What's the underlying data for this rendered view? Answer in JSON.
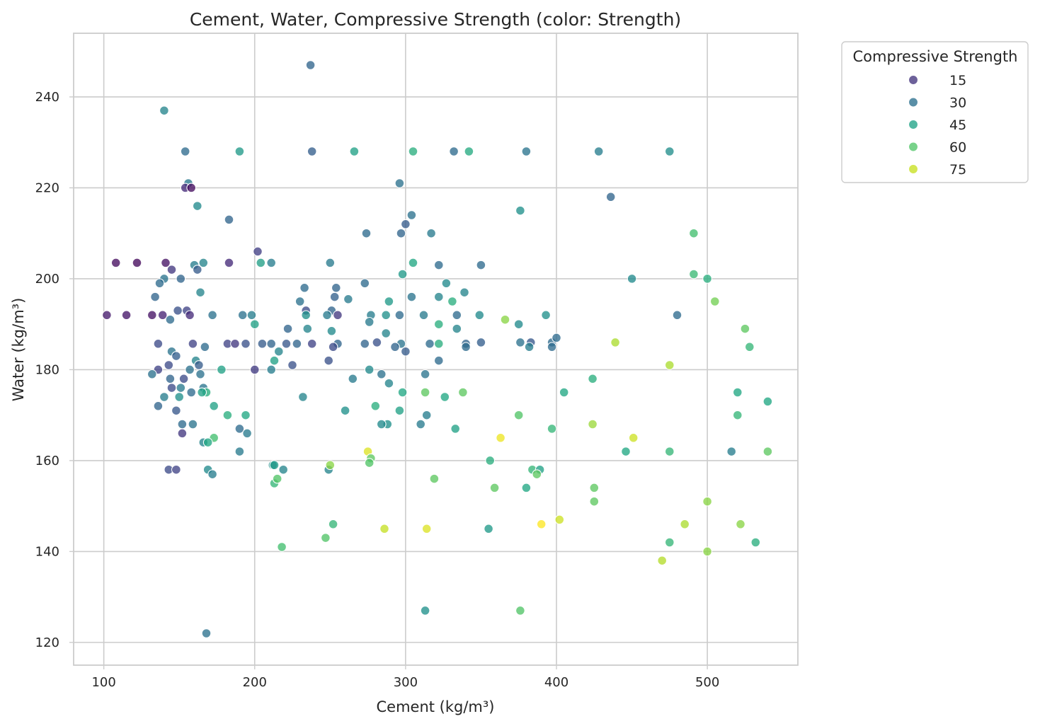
{
  "chart_data": {
    "type": "scatter",
    "title": "Cement, Water, Compressive Strength (color: Strength)",
    "xlabel": "Cement (kg/m³)",
    "ylabel": "Water (kg/m³)",
    "xlim": [
      80,
      560
    ],
    "ylim": [
      115,
      254
    ],
    "xticks": [
      100,
      200,
      300,
      400,
      500
    ],
    "yticks": [
      120,
      140,
      160,
      180,
      200,
      220,
      240
    ],
    "grid": true,
    "legend": {
      "title": "Compressive Strength",
      "placement": "outside-top-right",
      "entries": [
        {
          "label": "15",
          "value": 15,
          "color": "#44357d"
        },
        {
          "label": "30",
          "value": 30,
          "color": "#2c6f8e"
        },
        {
          "label": "45",
          "value": 45,
          "color": "#20a386"
        },
        {
          "label": "60",
          "value": 60,
          "color": "#52c569"
        },
        {
          "label": "75",
          "value": 75,
          "color": "#c8e020"
        }
      ]
    },
    "color_scale": {
      "name": "viridis",
      "domain": [
        2,
        82
      ],
      "stops": [
        "#440154",
        "#482475",
        "#414487",
        "#355f8d",
        "#2a788e",
        "#21918c",
        "#22a884",
        "#44bf70",
        "#7ad151",
        "#bddf26",
        "#fde725"
      ]
    },
    "points": [
      [
        237,
        247,
        28
      ],
      [
        140,
        237,
        38
      ],
      [
        154,
        228,
        30
      ],
      [
        190,
        228,
        45
      ],
      [
        238,
        228,
        26
      ],
      [
        266,
        228,
        48
      ],
      [
        305,
        228,
        52
      ],
      [
        332,
        228,
        30
      ],
      [
        342,
        228,
        51
      ],
      [
        380,
        228,
        33
      ],
      [
        428,
        228,
        36
      ],
      [
        475,
        228,
        41
      ],
      [
        156,
        221,
        34
      ],
      [
        154,
        220,
        12
      ],
      [
        158,
        220,
        5
      ],
      [
        296,
        221,
        32
      ],
      [
        436,
        218,
        28
      ],
      [
        162,
        216,
        40
      ],
      [
        376,
        215,
        42
      ],
      [
        183,
        213,
        28
      ],
      [
        300,
        212,
        25
      ],
      [
        304,
        214,
        32
      ],
      [
        274,
        210,
        30
      ],
      [
        297,
        210,
        28
      ],
      [
        317,
        210,
        35
      ],
      [
        491,
        210,
        58
      ],
      [
        108,
        203.5,
        5
      ],
      [
        122,
        203.5,
        4
      ],
      [
        141,
        203.5,
        6
      ],
      [
        160,
        203,
        36
      ],
      [
        166,
        203.5,
        38
      ],
      [
        183,
        203.5,
        12
      ],
      [
        204,
        203.5,
        47
      ],
      [
        211,
        203.5,
        36
      ],
      [
        250,
        203.5,
        35
      ],
      [
        305,
        203.5,
        50
      ],
      [
        322,
        203,
        30
      ],
      [
        350,
        203,
        30
      ],
      [
        202,
        206,
        17
      ],
      [
        145,
        202,
        15
      ],
      [
        162,
        202,
        25
      ],
      [
        491,
        201,
        56
      ],
      [
        298,
        201,
        45
      ],
      [
        500,
        200,
        52
      ],
      [
        450,
        200,
        40
      ],
      [
        140,
        200,
        33
      ],
      [
        151,
        200,
        28
      ],
      [
        137,
        199,
        30
      ],
      [
        233,
        198,
        30
      ],
      [
        254,
        198,
        28
      ],
      [
        273,
        199,
        30
      ],
      [
        327,
        199,
        40
      ],
      [
        164,
        197,
        38
      ],
      [
        339,
        197,
        38
      ],
      [
        134,
        196,
        28
      ],
      [
        253,
        196,
        27
      ],
      [
        230,
        195,
        32
      ],
      [
        262,
        195.5,
        35
      ],
      [
        289,
        195,
        45
      ],
      [
        331,
        195,
        52
      ],
      [
        304,
        196,
        33
      ],
      [
        322,
        196,
        38
      ],
      [
        505,
        195,
        65
      ],
      [
        234,
        193,
        20
      ],
      [
        251,
        193,
        28
      ],
      [
        155,
        193,
        18
      ],
      [
        312,
        192,
        35
      ],
      [
        149,
        193,
        22
      ],
      [
        102,
        192,
        8
      ],
      [
        115,
        192,
        7
      ],
      [
        132,
        192,
        6
      ],
      [
        139,
        192,
        10
      ],
      [
        157,
        192,
        12
      ],
      [
        172,
        192,
        32
      ],
      [
        192,
        192,
        32
      ],
      [
        198,
        192,
        36
      ],
      [
        234,
        192,
        42
      ],
      [
        248,
        192,
        35
      ],
      [
        255,
        192,
        15
      ],
      [
        277,
        192,
        36
      ],
      [
        287,
        192,
        42
      ],
      [
        296,
        192,
        30
      ],
      [
        349,
        192,
        40
      ],
      [
        393,
        192,
        42
      ],
      [
        480,
        192,
        30
      ],
      [
        334,
        192,
        30
      ],
      [
        144,
        191,
        30
      ],
      [
        200,
        190,
        48
      ],
      [
        276,
        190.5,
        35
      ],
      [
        322,
        190,
        52
      ],
      [
        334,
        189,
        38
      ],
      [
        375,
        190,
        40
      ],
      [
        366,
        191,
        68
      ],
      [
        222,
        189,
        28
      ],
      [
        251,
        188.5,
        40
      ],
      [
        235,
        189,
        38
      ],
      [
        287,
        188,
        38
      ],
      [
        439,
        186,
        72
      ],
      [
        475,
        181,
        72
      ],
      [
        525,
        189,
        62
      ],
      [
        528,
        185,
        55
      ],
      [
        182,
        185.7,
        18
      ],
      [
        187,
        185.7,
        15
      ],
      [
        194,
        185.7,
        22
      ],
      [
        205,
        185.7,
        25
      ],
      [
        211,
        185.7,
        28
      ],
      [
        221,
        185.7,
        24
      ],
      [
        228,
        185.7,
        28
      ],
      [
        238,
        185.7,
        18
      ],
      [
        255,
        185.7,
        28
      ],
      [
        273,
        185.7,
        28
      ],
      [
        281,
        186,
        22
      ],
      [
        297,
        185.7,
        33
      ],
      [
        316,
        185.7,
        30
      ],
      [
        322,
        185.7,
        52
      ],
      [
        340,
        185.7,
        28
      ],
      [
        350,
        186,
        26
      ],
      [
        376,
        186,
        32
      ],
      [
        383,
        186,
        24
      ],
      [
        397,
        186,
        30
      ],
      [
        400,
        187,
        30
      ],
      [
        159,
        185.7,
        18
      ],
      [
        136,
        185.7,
        20
      ],
      [
        167,
        185,
        30
      ],
      [
        216,
        184,
        38
      ],
      [
        145,
        184,
        33
      ],
      [
        300,
        184,
        25
      ],
      [
        252,
        185,
        20
      ],
      [
        340,
        185,
        30
      ],
      [
        382,
        185,
        36
      ],
      [
        397,
        185,
        30
      ],
      [
        293,
        185,
        28
      ],
      [
        161,
        182,
        38
      ],
      [
        143,
        181,
        20
      ],
      [
        163,
        181,
        25
      ],
      [
        213,
        182,
        48
      ],
      [
        225,
        181,
        22
      ],
      [
        136,
        180,
        18
      ],
      [
        157,
        180,
        32
      ],
      [
        178,
        180,
        48
      ],
      [
        200,
        180,
        16
      ],
      [
        211,
        180,
        36
      ],
      [
        276,
        180,
        40
      ],
      [
        249,
        182,
        22
      ],
      [
        322,
        182,
        30
      ],
      [
        148,
        183,
        26
      ],
      [
        153,
        178,
        20
      ],
      [
        144,
        178,
        28
      ],
      [
        132,
        179,
        32
      ],
      [
        164,
        179,
        32
      ],
      [
        265,
        178,
        35
      ],
      [
        284,
        179,
        32
      ],
      [
        313,
        179,
        33
      ],
      [
        289,
        177,
        38
      ],
      [
        145,
        176,
        20
      ],
      [
        166,
        176,
        33
      ],
      [
        151,
        176,
        35
      ],
      [
        158,
        175,
        30
      ],
      [
        168,
        175,
        52
      ],
      [
        165,
        175,
        48
      ],
      [
        140,
        174,
        36
      ],
      [
        150,
        174,
        42
      ],
      [
        232,
        174,
        38
      ],
      [
        298,
        175,
        50
      ],
      [
        313,
        175,
        62
      ],
      [
        326,
        174,
        50
      ],
      [
        338,
        175,
        62
      ],
      [
        405,
        175,
        50
      ],
      [
        520,
        175,
        50
      ],
      [
        540,
        173,
        50
      ],
      [
        148,
        171,
        24
      ],
      [
        136,
        172,
        28
      ],
      [
        173,
        172,
        48
      ],
      [
        194,
        170,
        50
      ],
      [
        182,
        170,
        52
      ],
      [
        260,
        171,
        42
      ],
      [
        280,
        172,
        52
      ],
      [
        296,
        171,
        48
      ],
      [
        314,
        170,
        36
      ],
      [
        375,
        170,
        60
      ],
      [
        520,
        170,
        55
      ],
      [
        152,
        168,
        30
      ],
      [
        159,
        168,
        33
      ],
      [
        173,
        165,
        58
      ],
      [
        166,
        164,
        38
      ],
      [
        169,
        164,
        50
      ],
      [
        190,
        167,
        30
      ],
      [
        195,
        166,
        35
      ],
      [
        288,
        168,
        42
      ],
      [
        284,
        168,
        40
      ],
      [
        310,
        168,
        35
      ],
      [
        333,
        167,
        48
      ],
      [
        397,
        167,
        55
      ],
      [
        424,
        168,
        70
      ],
      [
        451,
        165,
        76
      ],
      [
        363,
        165,
        80
      ],
      [
        152,
        166,
        15
      ],
      [
        190,
        162,
        35
      ],
      [
        275,
        162,
        78
      ],
      [
        277,
        160.5,
        62
      ],
      [
        276,
        159.5,
        60
      ],
      [
        249,
        158,
        38
      ],
      [
        250,
        159,
        68
      ],
      [
        212,
        159,
        42
      ],
      [
        213,
        159,
        45
      ],
      [
        219,
        158,
        38
      ],
      [
        143,
        158,
        20
      ],
      [
        148,
        158,
        18
      ],
      [
        169,
        158,
        40
      ],
      [
        172,
        157,
        36
      ],
      [
        356,
        160,
        52
      ],
      [
        384,
        158,
        55
      ],
      [
        389,
        158,
        48
      ],
      [
        387,
        157,
        62
      ],
      [
        446,
        162,
        50
      ],
      [
        475,
        162,
        55
      ],
      [
        516,
        162,
        36
      ],
      [
        540,
        162,
        62
      ],
      [
        424,
        178,
        52
      ],
      [
        213,
        155,
        55
      ],
      [
        215,
        156,
        60
      ],
      [
        319,
        156,
        62
      ],
      [
        359,
        154,
        62
      ],
      [
        380,
        154,
        50
      ],
      [
        425,
        154,
        62
      ],
      [
        425,
        151,
        62
      ],
      [
        500,
        151,
        68
      ],
      [
        252,
        146,
        55
      ],
      [
        247,
        143,
        60
      ],
      [
        286,
        145,
        75
      ],
      [
        314,
        145,
        78
      ],
      [
        355,
        145,
        45
      ],
      [
        390,
        146,
        82
      ],
      [
        402,
        147,
        76
      ],
      [
        218,
        141,
        58
      ],
      [
        475,
        142,
        55
      ],
      [
        485,
        146,
        72
      ],
      [
        522,
        146,
        68
      ],
      [
        532,
        142,
        52
      ],
      [
        470,
        138,
        73
      ],
      [
        500,
        140,
        68
      ],
      [
        313,
        127,
        42
      ],
      [
        376,
        127,
        60
      ],
      [
        168,
        122,
        32
      ]
    ]
  }
}
